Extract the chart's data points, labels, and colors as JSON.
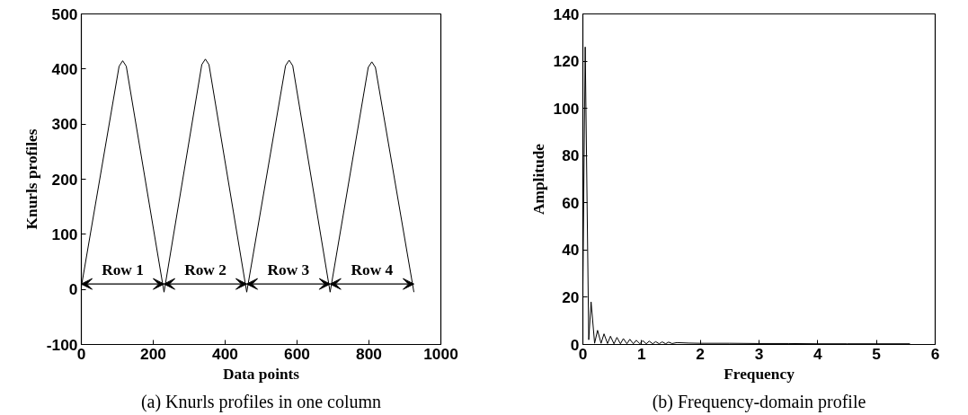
{
  "chart_data": [
    {
      "type": "line",
      "title": "(a) Knurls profiles in one column",
      "xlabel": "Data points",
      "ylabel": "Knurls profiles",
      "xlim": [
        0,
        1000
      ],
      "ylim": [
        -100,
        500
      ],
      "xticks": [
        0,
        200,
        400,
        600,
        800,
        1000
      ],
      "yticks": [
        -100,
        0,
        100,
        200,
        300,
        400,
        500
      ],
      "grid": false,
      "series": [
        {
          "color": "#000000",
          "x": [
            0,
            105,
            115,
            125,
            230,
            335,
            345,
            355,
            460,
            568,
            578,
            588,
            692,
            798,
            808,
            818,
            925
          ],
          "values": [
            5,
            405,
            415,
            405,
            -5,
            408,
            418,
            408,
            -5,
            406,
            416,
            406,
            -5,
            403,
            413,
            403,
            -5
          ]
        }
      ],
      "annotations": [
        "Row 1",
        "Row 2",
        "Row 3",
        "Row 4"
      ]
    },
    {
      "type": "line",
      "title": "(b) Frequency-domain profile",
      "xlabel": "Frequency",
      "ylabel": "Amplitude",
      "xlim": [
        0,
        6
      ],
      "ylim": [
        0,
        140
      ],
      "xticks": [
        0,
        1,
        2,
        3,
        4,
        5,
        6
      ],
      "yticks": [
        0,
        20,
        40,
        60,
        80,
        100,
        120,
        140
      ],
      "grid": false,
      "series": [
        {
          "color": "#000000",
          "x": [
            0,
            0.04,
            0.1,
            0.14,
            0.2,
            0.25,
            0.31,
            0.36,
            0.42,
            0.47,
            0.53,
            0.58,
            0.64,
            0.69,
            0.75,
            0.8,
            0.86,
            0.91,
            0.97,
            1.02,
            1.08,
            1.13,
            1.19,
            1.24,
            1.3,
            1.35,
            1.41,
            1.46,
            1.52,
            1.6,
            1.8,
            2.0,
            2.5,
            3.0,
            3.5,
            4.0,
            4.5,
            5.0,
            5.57
          ],
          "values": [
            25,
            126,
            2,
            18,
            0.5,
            6,
            0.5,
            4.5,
            0.4,
            3.5,
            0.3,
            3,
            0.3,
            2.5,
            0.3,
            2.2,
            0.3,
            1.8,
            0.3,
            1.6,
            0.3,
            1.4,
            0.3,
            1.2,
            0.3,
            1.1,
            0.3,
            1,
            0.4,
            0.8,
            0.6,
            0.5,
            0.5,
            0.4,
            0.4,
            0.3,
            0.3,
            0.3,
            0.3
          ]
        }
      ]
    }
  ]
}
